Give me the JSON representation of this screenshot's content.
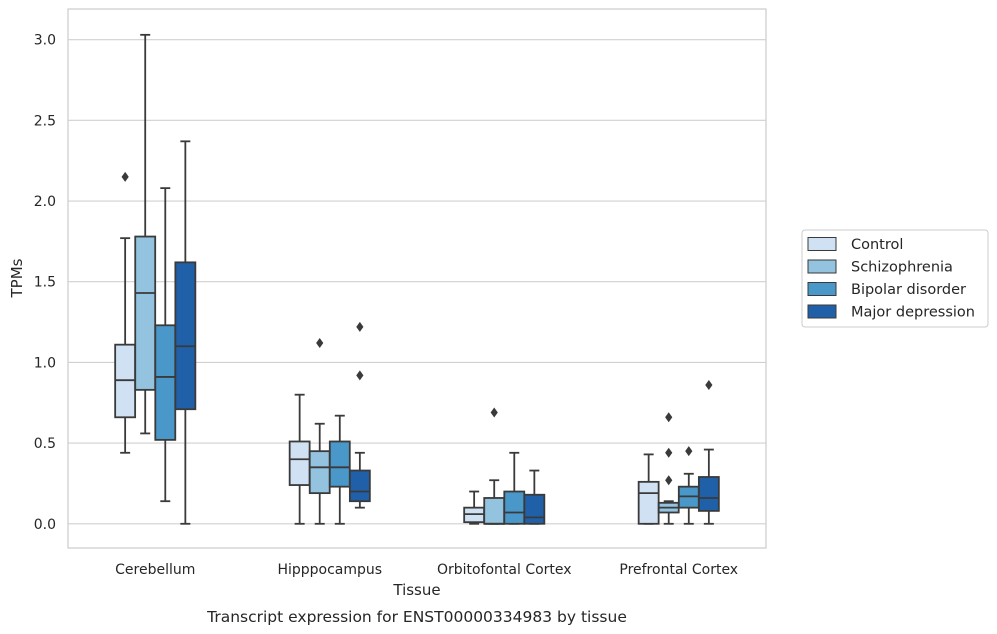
{
  "chart_data": {
    "type": "box",
    "caption": "Transcript expression for ENST00000334983 by tissue",
    "xlabel": "Tissue",
    "ylabel": "TPMs",
    "ylim": [
      -0.15,
      3.19
    ],
    "yticks": [
      0.0,
      0.5,
      1.0,
      1.5,
      2.0,
      2.5,
      3.0
    ],
    "ytick_labels": [
      "0.0",
      "0.5",
      "1.0",
      "1.5",
      "2.0",
      "2.5",
      "3.0"
    ],
    "grid": "horizontal",
    "legend_placement": "right",
    "categories": [
      "Cerebellum",
      "Hipppocampus",
      "Orbitofontal Cortex",
      "Prefrontal Cortex"
    ],
    "series": [
      {
        "name": "Control",
        "color": "#cfe1f2",
        "boxes": [
          {
            "whislo": 0.44,
            "q1": 0.66,
            "med": 0.89,
            "q3": 1.11,
            "whishi": 1.77,
            "fliers": [
              2.15
            ]
          },
          {
            "whislo": 0.0,
            "q1": 0.24,
            "med": 0.4,
            "q3": 0.51,
            "whishi": 0.8,
            "fliers": []
          },
          {
            "whislo": 0.0,
            "q1": 0.01,
            "med": 0.06,
            "q3": 0.1,
            "whishi": 0.2,
            "fliers": []
          },
          {
            "whislo": 0.0,
            "q1": 0.0,
            "med": 0.19,
            "q3": 0.26,
            "whishi": 0.43,
            "fliers": []
          }
        ]
      },
      {
        "name": "Schizophrenia",
        "color": "#93c3df",
        "boxes": [
          {
            "whislo": 0.56,
            "q1": 0.83,
            "med": 1.43,
            "q3": 1.78,
            "whishi": 3.03,
            "fliers": []
          },
          {
            "whislo": 0.0,
            "q1": 0.19,
            "med": 0.35,
            "q3": 0.45,
            "whishi": 0.62,
            "fliers": [
              1.12
            ]
          },
          {
            "whislo": 0.0,
            "q1": 0.0,
            "med": 0.0,
            "q3": 0.16,
            "whishi": 0.27,
            "fliers": [
              0.69
            ]
          },
          {
            "whislo": 0.0,
            "q1": 0.07,
            "med": 0.1,
            "q3": 0.13,
            "whishi": 0.14,
            "fliers": [
              0.27,
              0.44,
              0.66
            ]
          }
        ]
      },
      {
        "name": "Bipolar disorder",
        "color": "#4a98c9",
        "boxes": [
          {
            "whislo": 0.14,
            "q1": 0.52,
            "med": 0.91,
            "q3": 1.23,
            "whishi": 2.08,
            "fliers": []
          },
          {
            "whislo": 0.0,
            "q1": 0.23,
            "med": 0.35,
            "q3": 0.51,
            "whishi": 0.67,
            "fliers": []
          },
          {
            "whislo": 0.0,
            "q1": 0.0,
            "med": 0.07,
            "q3": 0.2,
            "whishi": 0.44,
            "fliers": []
          },
          {
            "whislo": 0.0,
            "q1": 0.1,
            "med": 0.17,
            "q3": 0.23,
            "whishi": 0.31,
            "fliers": [
              0.45
            ]
          }
        ]
      },
      {
        "name": "Major depression",
        "color": "#2060a8",
        "boxes": [
          {
            "whislo": 0.0,
            "q1": 0.71,
            "med": 1.1,
            "q3": 1.62,
            "whishi": 2.37,
            "fliers": []
          },
          {
            "whislo": 0.1,
            "q1": 0.14,
            "med": 0.2,
            "q3": 0.33,
            "whishi": 0.44,
            "fliers": [
              0.92,
              1.22
            ]
          },
          {
            "whislo": 0.0,
            "q1": 0.0,
            "med": 0.04,
            "q3": 0.18,
            "whishi": 0.33,
            "fliers": []
          },
          {
            "whislo": 0.0,
            "q1": 0.08,
            "med": 0.16,
            "q3": 0.29,
            "whishi": 0.46,
            "fliers": [
              0.86
            ]
          }
        ]
      }
    ]
  }
}
